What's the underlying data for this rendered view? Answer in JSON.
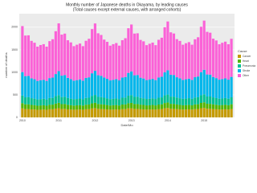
{
  "chart_data": {
    "type": "stacked_bar",
    "title": "Monthly number of Japanese deaths in Okayama, by leading causes",
    "subtitle": "(Total causes except external causes, with arranged cohorts)",
    "x_label": "Date/Mo",
    "y_label": "number of deaths",
    "legend_title": "Cause",
    "categories": [
      "2010",
      null,
      null,
      null,
      null,
      null,
      null,
      null,
      null,
      null,
      null,
      null,
      "2011",
      null,
      null,
      null,
      null,
      null,
      null,
      null,
      null,
      null,
      null,
      null,
      "2012",
      null,
      null,
      null,
      null,
      null,
      null,
      null,
      null,
      null,
      null,
      null,
      "2013",
      null,
      null,
      null,
      null,
      null,
      null,
      null,
      null,
      null,
      null,
      null,
      "2014",
      null,
      null,
      null,
      null,
      null,
      null,
      null,
      null,
      null,
      null,
      null,
      "2015",
      null,
      null,
      null,
      null,
      null,
      null,
      null,
      null,
      null
    ],
    "series": [
      {
        "name": "Cancer",
        "color": "#c49a00",
        "values": [
          200,
          186,
          184,
          178,
          176,
          169,
          171,
          174,
          169,
          181,
          182,
          196,
          205,
          188,
          190,
          179,
          174,
          171,
          172,
          176,
          171,
          180,
          183,
          199,
          207,
          190,
          186,
          182,
          177,
          172,
          173,
          177,
          172,
          183,
          185,
          201,
          203,
          189,
          188,
          181,
          178,
          173,
          174,
          178,
          173,
          182,
          186,
          204,
          210,
          192,
          189,
          183,
          179,
          174,
          175,
          179,
          174,
          184,
          187,
          205,
          212,
          193,
          191,
          185,
          180,
          175,
          176,
          180,
          175,
          186
        ]
      },
      {
        "name": "Heart",
        "color": "#53b400",
        "values": [
          115,
          104,
          106,
          99,
          95,
          90,
          94,
          95,
          90,
          100,
          101,
          110,
          118,
          106,
          107,
          101,
          96,
          91,
          95,
          96,
          91,
          101,
          102,
          112,
          117,
          107,
          105,
          102,
          97,
          92,
          96,
          97,
          92,
          102,
          103,
          113,
          119,
          108,
          108,
          101,
          98,
          93,
          95,
          98,
          93,
          103,
          104,
          115,
          121,
          109,
          108,
          103,
          98,
          94,
          97,
          99,
          94,
          104,
          105,
          116,
          122,
          110,
          109,
          104,
          99,
          95,
          98,
          100,
          95,
          105
        ]
      },
      {
        "name": "Pneumonia",
        "color": "#00c094",
        "values": [
          170,
          155,
          160,
          150,
          145,
          140,
          140,
          145,
          140,
          150,
          150,
          165,
          172,
          157,
          161,
          151,
          146,
          141,
          142,
          146,
          141,
          151,
          152,
          167,
          174,
          158,
          160,
          153,
          147,
          142,
          143,
          147,
          142,
          152,
          153,
          168,
          173,
          159,
          162,
          152,
          148,
          143,
          144,
          148,
          143,
          153,
          154,
          170,
          176,
          160,
          163,
          154,
          149,
          144,
          145,
          149,
          144,
          154,
          155,
          171,
          177,
          161,
          164,
          155,
          150,
          145,
          146,
          150,
          145,
          155
        ]
      },
      {
        "name": "Stroke",
        "color": "#00b6eb",
        "values": [
          520,
          470,
          470,
          440,
          430,
          410,
          420,
          420,
          410,
          440,
          450,
          490,
          530,
          475,
          480,
          445,
          432,
          412,
          418,
          425,
          412,
          442,
          452,
          500,
          535,
          480,
          472,
          448,
          435,
          415,
          422,
          428,
          415,
          445,
          455,
          505,
          525,
          478,
          482,
          446,
          438,
          418,
          425,
          430,
          418,
          448,
          458,
          510,
          540,
          485,
          480,
          450,
          440,
          420,
          428,
          432,
          420,
          450,
          460,
          512,
          545,
          488,
          484,
          452,
          442,
          422,
          430,
          435,
          422,
          452
        ]
      },
      {
        "name": "Other",
        "color": "#fb61d7",
        "values": [
          1020,
          900,
          900,
          830,
          810,
          760,
          780,
          790,
          760,
          820,
          850,
          950,
          1060,
          910,
          920,
          835,
          815,
          765,
          785,
          795,
          765,
          825,
          855,
          980,
          1050,
          930,
          905,
          840,
          820,
          770,
          790,
          800,
          770,
          830,
          860,
          990,
          1040,
          925,
          925,
          838,
          825,
          775,
          795,
          805,
          775,
          835,
          865,
          1000,
          1080,
          940,
          920,
          845,
          830,
          780,
          800,
          810,
          780,
          840,
          870,
          1005,
          1090,
          945,
          930,
          850,
          835,
          785,
          805,
          815,
          785,
          845
        ]
      }
    ],
    "ylim": [
      0,
      2300
    ],
    "yticks": [
      0,
      500,
      1000,
      1500,
      2000
    ],
    "grid": true
  }
}
